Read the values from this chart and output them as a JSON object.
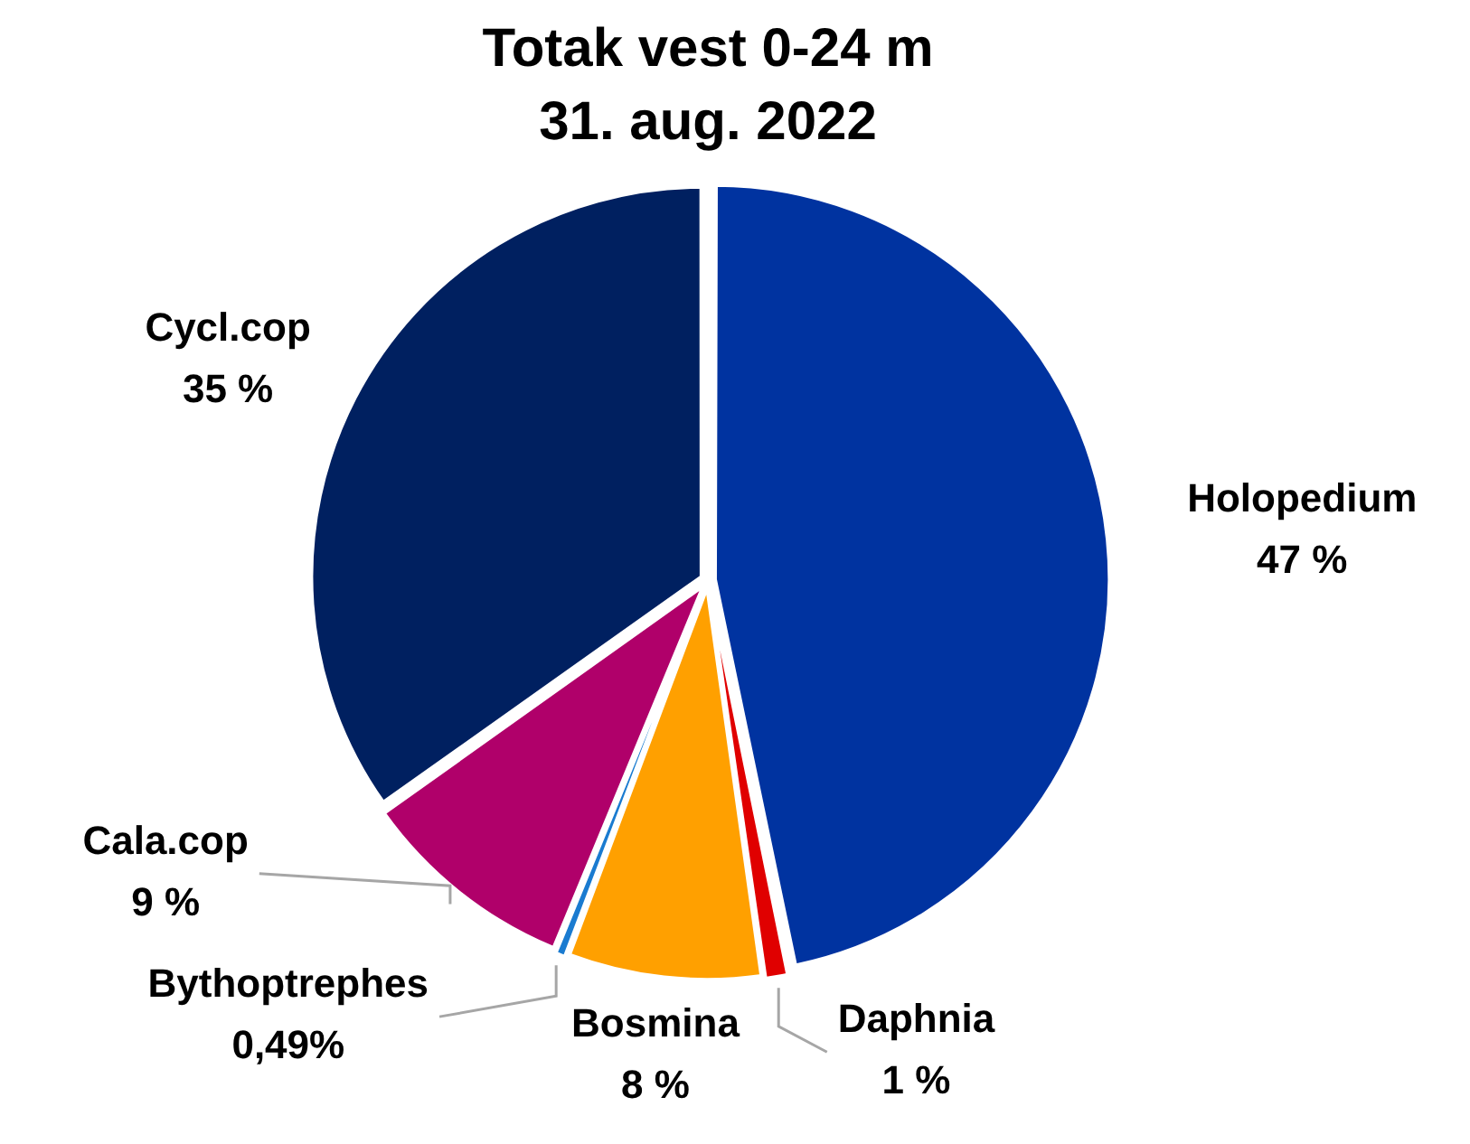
{
  "chart_data": {
    "type": "pie",
    "title": "Totak vest 0-24 m\n31. aug. 2022",
    "categories": [
      "Holopedium",
      "Daphnia",
      "Bosmina",
      "Bythoptrephes",
      "Cala.cop",
      "Cycl.cop"
    ],
    "values": [
      47,
      1,
      8,
      0.49,
      9,
      35
    ],
    "colors": [
      "#0033a0",
      "#e00000",
      "#ffa000",
      "#1a7bd0",
      "#b0006a",
      "#002060"
    ],
    "value_labels": [
      "47 %",
      "1 %",
      "8 %",
      "0,49%",
      "9 %",
      "35 %"
    ]
  }
}
